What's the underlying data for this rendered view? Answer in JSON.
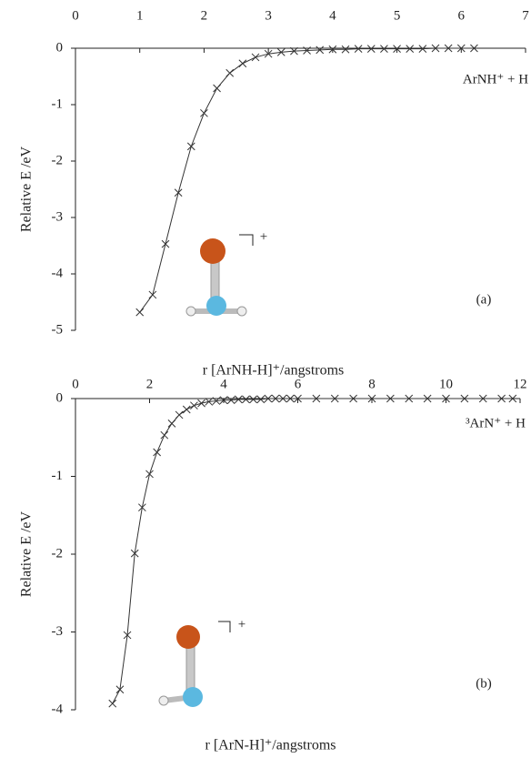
{
  "chart_data": [
    {
      "type": "line",
      "xlabel": "r [ArNH-H]⁺/angstroms",
      "ylabel": "Relative E /eV",
      "annotation": "ArNH⁺ + H",
      "panel_label": "(a)",
      "charge": "+",
      "color": "#333333",
      "xlim": [
        0,
        7
      ],
      "ylim": [
        -5,
        0
      ],
      "xticks": [
        0,
        1,
        2,
        3,
        4,
        5,
        6,
        7
      ],
      "yticks": [
        0,
        -1,
        -2,
        -3,
        -4,
        -5
      ],
      "x": [
        1.0,
        1.2,
        1.4,
        1.6,
        1.8,
        2.0,
        2.2,
        2.4,
        2.6,
        2.8,
        3.0,
        3.2,
        3.4,
        3.6,
        3.8,
        4.0,
        4.2,
        4.4,
        4.6,
        4.8,
        5.0,
        5.2,
        5.4,
        5.6,
        5.8,
        6.0,
        6.2
      ],
      "values": [
        -4.68,
        -4.37,
        -3.47,
        -2.56,
        -1.74,
        -1.15,
        -0.71,
        -0.44,
        -0.27,
        -0.16,
        -0.1,
        -0.07,
        -0.05,
        -0.04,
        -0.03,
        -0.02,
        -0.02,
        -0.01,
        -0.01,
        -0.01,
        -0.01,
        -0.01,
        -0.01,
        0,
        0,
        0,
        0
      ]
    },
    {
      "type": "line",
      "xlabel": "r [ArN-H]⁺/angstroms",
      "ylabel": "Relative E /eV",
      "annotation": "³ArN⁺ + H",
      "panel_label": "(b)",
      "charge": "+",
      "color": "#333333",
      "xlim": [
        0,
        12
      ],
      "ylim": [
        -4,
        0
      ],
      "xticks": [
        0,
        2,
        4,
        6,
        8,
        10,
        12
      ],
      "yticks": [
        0,
        -1,
        -2,
        -3,
        -4
      ],
      "x": [
        1.0,
        1.2,
        1.4,
        1.6,
        1.8,
        2.0,
        2.2,
        2.4,
        2.6,
        2.8,
        3.0,
        3.2,
        3.4,
        3.6,
        3.8,
        4.0,
        4.2,
        4.4,
        4.6,
        4.8,
        5.0,
        5.2,
        5.4,
        5.6,
        5.8,
        6.0,
        6.5,
        7.0,
        7.5,
        8.0,
        8.5,
        9.0,
        9.5,
        10.0,
        10.5,
        11.0,
        11.5,
        11.8
      ],
      "values": [
        -3.92,
        -3.74,
        -3.04,
        -1.99,
        -1.4,
        -0.97,
        -0.69,
        -0.47,
        -0.32,
        -0.21,
        -0.14,
        -0.09,
        -0.06,
        -0.04,
        -0.03,
        -0.02,
        -0.02,
        -0.01,
        -0.01,
        -0.01,
        -0.01,
        0,
        0,
        0,
        0,
        0,
        0,
        0,
        0,
        0,
        0,
        0,
        0,
        0,
        0,
        0,
        0,
        0
      ]
    }
  ]
}
